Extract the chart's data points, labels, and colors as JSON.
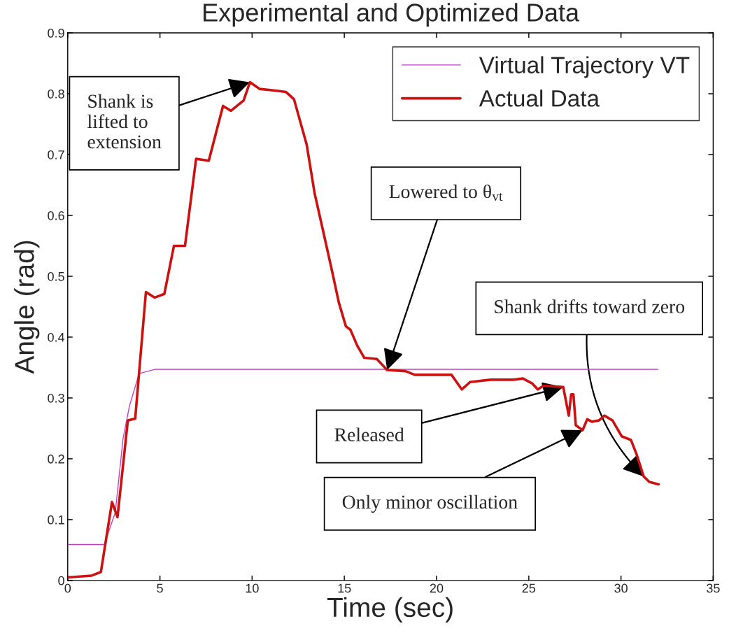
{
  "chart_data": {
    "type": "line",
    "title": "Experimental and Optimized Data",
    "xlabel": "Time (sec)",
    "ylabel": "Angle (rad)",
    "xlim": [
      0,
      35
    ],
    "ylim": [
      0,
      0.9
    ],
    "xticks": [
      0,
      5,
      10,
      15,
      20,
      25,
      30,
      35
    ],
    "yticks": [
      0,
      0.1,
      0.2,
      0.3,
      0.4,
      0.5,
      0.6,
      0.7,
      0.8,
      0.9
    ],
    "grid": false,
    "legend": "top right",
    "marker": "none",
    "line_style": "solid",
    "series": [
      {
        "name": "Virtual Trajectory VT",
        "color": "#c040c0",
        "x": [
          0,
          1.98,
          2.58,
          3.0,
          3.35,
          3.87,
          4.72,
          32.0
        ],
        "values": [
          0.059,
          0.059,
          0.112,
          0.233,
          0.287,
          0.34,
          0.347,
          0.347
        ]
      },
      {
        "name": "Actual Data",
        "color": "#cc1111",
        "x": [
          0,
          1.3,
          1.8,
          2.4,
          2.7,
          3.26,
          3.66,
          4.24,
          4.72,
          5.24,
          5.76,
          6.36,
          6.96,
          7.65,
          8.42,
          8.85,
          9.54,
          9.88,
          10.4,
          11.34,
          11.83,
          12.27,
          12.96,
          13.39,
          13.83,
          14.33,
          14.7,
          15.08,
          15.33,
          15.7,
          16.08,
          16.76,
          17.32,
          18.32,
          18.82,
          20.81,
          21.37,
          21.81,
          22.93,
          24.18,
          24.68,
          25.18,
          25.49,
          25.8,
          26.87,
          27.17,
          27.3,
          27.42,
          27.55,
          27.92,
          28.17,
          28.42,
          28.8,
          29.11,
          29.54,
          30.04,
          30.54,
          30.85,
          31.23,
          31.54,
          32.04
        ],
        "values": [
          0.005,
          0.008,
          0.014,
          0.129,
          0.104,
          0.263,
          0.266,
          0.474,
          0.465,
          0.471,
          0.55,
          0.55,
          0.693,
          0.69,
          0.78,
          0.772,
          0.789,
          0.819,
          0.808,
          0.805,
          0.803,
          0.791,
          0.716,
          0.636,
          0.577,
          0.509,
          0.457,
          0.418,
          0.412,
          0.386,
          0.366,
          0.364,
          0.346,
          0.344,
          0.338,
          0.338,
          0.314,
          0.326,
          0.33,
          0.33,
          0.332,
          0.324,
          0.314,
          0.32,
          0.318,
          0.271,
          0.306,
          0.306,
          0.255,
          0.247,
          0.265,
          0.261,
          0.263,
          0.271,
          0.263,
          0.237,
          0.231,
          0.207,
          0.171,
          0.162,
          0.158
        ]
      }
    ],
    "annotations": [
      {
        "text": "Shank is\nlifted to\nextension",
        "x": 9.88,
        "y": 0.819
      },
      {
        "text": "Lowered to θ$_{vt}$",
        "x": 17.32,
        "y": 0.346
      },
      {
        "text": "Shank drifts toward zero",
        "x": 31.23,
        "y": 0.171
      },
      {
        "text": "Released",
        "x": 26.87,
        "y": 0.318
      },
      {
        "text": "Only minor oscillation",
        "x": 27.92,
        "y": 0.247
      }
    ]
  }
}
